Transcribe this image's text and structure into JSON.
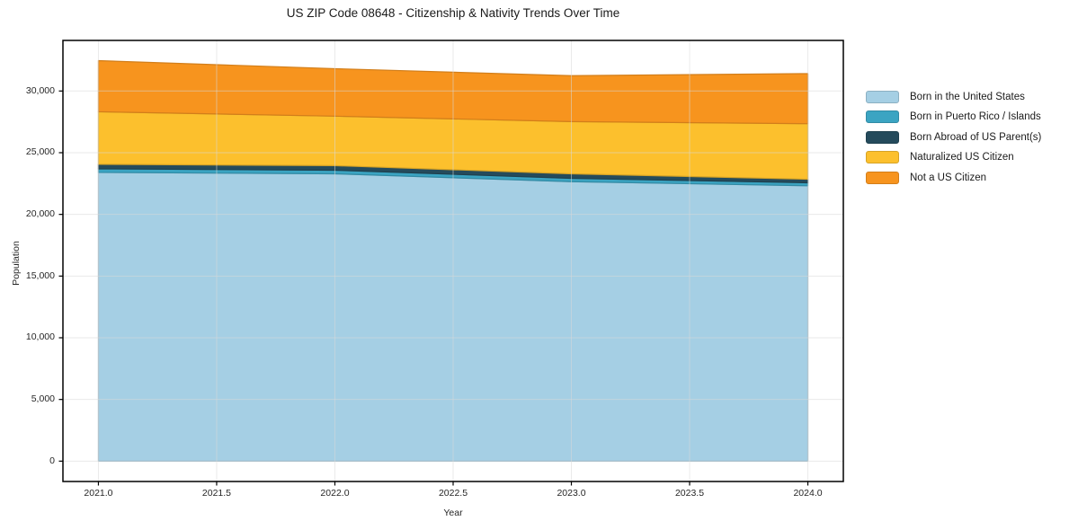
{
  "chart_data": {
    "type": "area",
    "stacked": true,
    "title": "US ZIP Code 08648 - Citizenship & Nativity Trends Over Time",
    "xlabel": "Year",
    "ylabel": "Population",
    "x": [
      2021,
      2022,
      2023,
      2024
    ],
    "x_ticks": [
      2021.0,
      2021.5,
      2022.0,
      2022.5,
      2023.0,
      2023.5,
      2024.0
    ],
    "x_tick_labels": [
      "2021.0",
      "2021.5",
      "2022.0",
      "2022.5",
      "2023.0",
      "2023.5",
      "2024.0"
    ],
    "y_ticks": [
      0,
      5000,
      10000,
      15000,
      20000,
      25000,
      30000
    ],
    "y_tick_labels": [
      "0",
      "5,000",
      "10,000",
      "15,000",
      "20,000",
      "25,000",
      "30,000"
    ],
    "xlim": [
      2020.85,
      2024.15
    ],
    "ylim": [
      -1650,
      34100
    ],
    "grid": true,
    "grid_color": "#d9d9d9",
    "frame_color": "#000000",
    "background": "#ffffff",
    "legend_position": "right outside",
    "series": [
      {
        "name": "Born in the United States",
        "color": "#a5cfe4",
        "values": [
          23400,
          23290,
          22650,
          22320
        ]
      },
      {
        "name": "Born in Puerto Rico / Islands",
        "color": "#3ba4c2",
        "values": [
          290,
          290,
          270,
          240
        ]
      },
      {
        "name": "Born Abroad of US Parent(s)",
        "color": "#254b5c",
        "values": [
          370,
          370,
          370,
          290
        ]
      },
      {
        "name": "Naturalized US Citizen",
        "color": "#fcc02d",
        "values": [
          4260,
          4010,
          4230,
          4500
        ]
      },
      {
        "name": "Not a US Citizen",
        "color": "#f7941e",
        "values": [
          4140,
          3850,
          3720,
          4060
        ]
      }
    ]
  }
}
